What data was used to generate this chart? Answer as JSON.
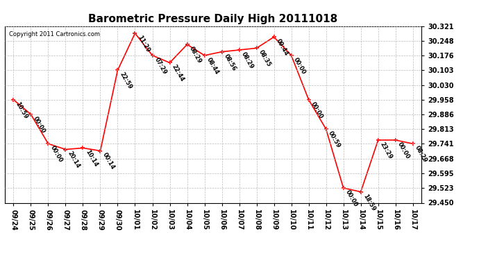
{
  "title": "Barometric Pressure Daily High 20111018",
  "copyright": "Copyright 2011 Cartronics.com",
  "x_labels": [
    "09/24",
    "09/25",
    "09/26",
    "09/27",
    "09/28",
    "09/29",
    "09/30",
    "10/01",
    "10/02",
    "10/03",
    "10/04",
    "10/05",
    "10/06",
    "10/07",
    "10/08",
    "10/09",
    "10/10",
    "10/11",
    "10/12",
    "10/13",
    "10/14",
    "10/15",
    "10/16",
    "10/17"
  ],
  "y_values": [
    29.958,
    29.886,
    29.741,
    29.713,
    29.72,
    29.706,
    30.103,
    30.285,
    30.176,
    30.14,
    30.23,
    30.176,
    30.194,
    30.203,
    30.212,
    30.267,
    30.176,
    29.958,
    29.813,
    29.523,
    29.504,
    29.759,
    29.759,
    29.741
  ],
  "time_labels": [
    "10:59",
    "00:00",
    "00:00",
    "20:14",
    "10:14",
    "00:14",
    "22:59",
    "11:29",
    "07:29",
    "22:44",
    "08:29",
    "08:44",
    "08:56",
    "08:29",
    "08:35",
    "09:44",
    "00:00",
    "00:00",
    "00:59",
    "00:00",
    "18:59",
    "23:29",
    "00:00",
    "08:29"
  ],
  "ylim_min": 29.45,
  "ylim_max": 30.321,
  "yticks": [
    29.45,
    29.523,
    29.595,
    29.668,
    29.741,
    29.813,
    29.886,
    29.958,
    30.03,
    30.103,
    30.176,
    30.248,
    30.321
  ],
  "line_color": "red",
  "marker_color": "red",
  "bg_color": "#ffffff",
  "grid_color": "#bbbbbb",
  "title_fontsize": 11,
  "label_fontsize": 6,
  "tick_fontsize": 7,
  "copyright_fontsize": 6
}
